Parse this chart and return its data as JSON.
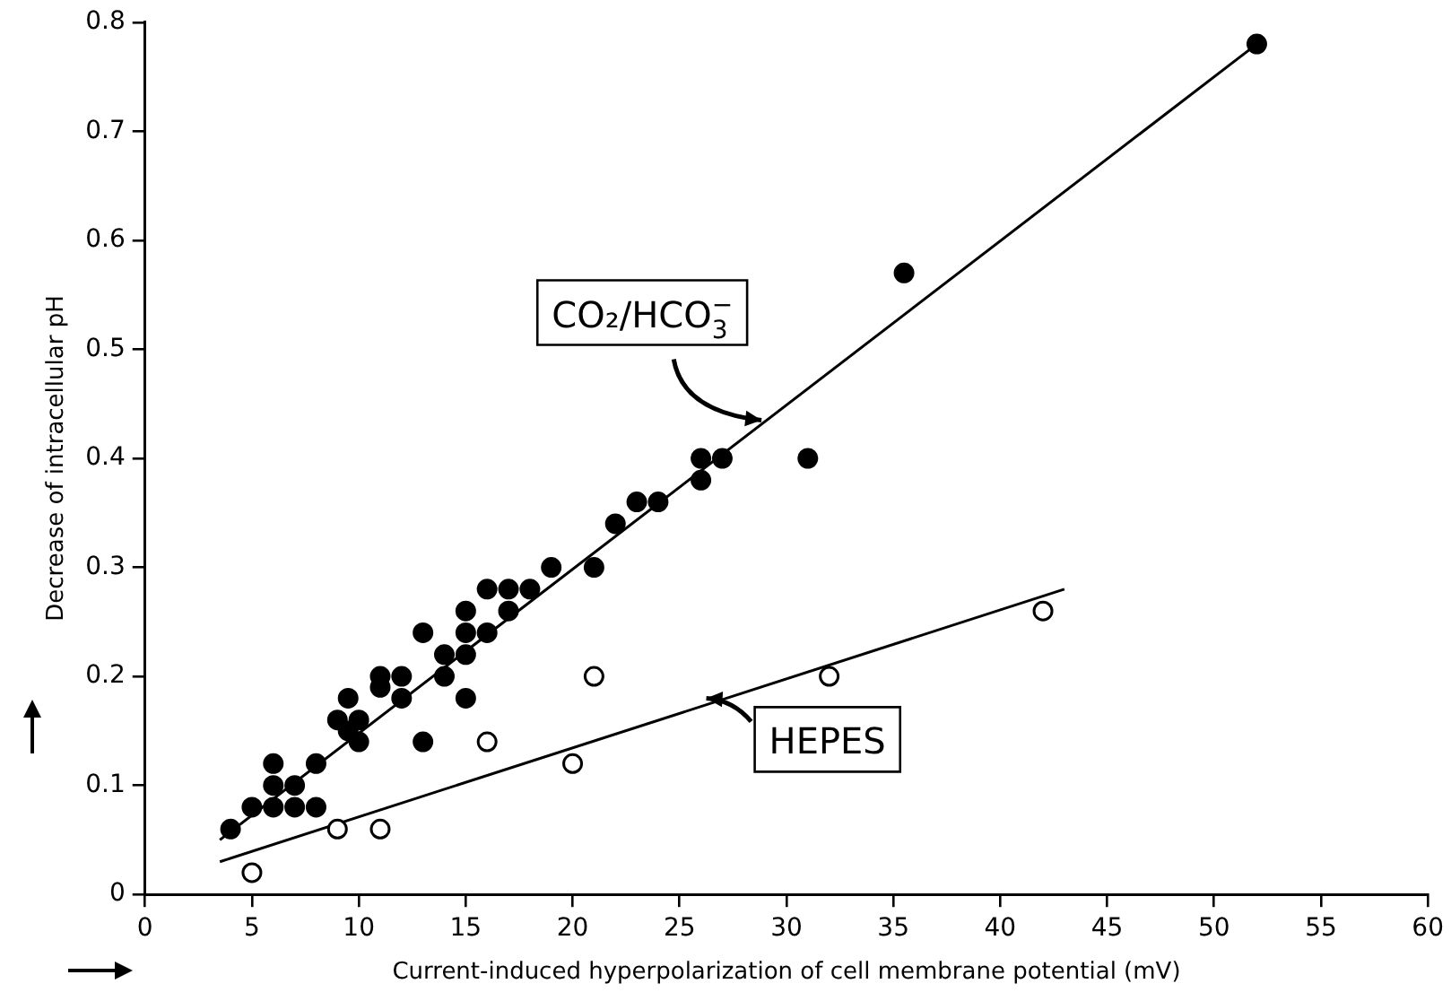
{
  "chart_data": {
    "type": "scatter",
    "xlabel": "Current-induced hyperpolarization of cell membrane potential (mV)",
    "ylabel": "Decrease of intracellular pH",
    "xlim": [
      0,
      60
    ],
    "xticks": [
      0,
      5,
      10,
      15,
      20,
      25,
      30,
      35,
      40,
      45,
      50,
      55,
      60
    ],
    "ylim": [
      0,
      0.8
    ],
    "yticks": [
      0,
      0.1,
      0.2,
      0.3,
      0.4,
      0.5,
      0.6,
      0.7,
      0.8
    ],
    "grid": false,
    "legend": false,
    "marker": "circle",
    "series": [
      {
        "color": "#000000",
        "x": [
          4,
          5,
          6,
          6,
          6,
          7,
          7,
          8,
          8,
          9,
          9.5,
          9.5,
          10,
          10,
          11,
          11,
          12,
          12,
          13,
          13,
          14,
          14,
          15,
          15,
          15,
          15,
          16,
          16,
          17,
          17,
          18,
          19,
          21,
          22,
          23,
          24,
          26,
          26,
          27,
          31,
          35.5,
          52
        ],
        "values": [
          0.06,
          0.08,
          0.08,
          0.1,
          0.12,
          0.08,
          0.1,
          0.08,
          0.12,
          0.16,
          0.18,
          0.15,
          0.14,
          0.16,
          0.19,
          0.2,
          0.2,
          0.18,
          0.14,
          0.24,
          0.2,
          0.22,
          0.18,
          0.22,
          0.24,
          0.26,
          0.28,
          0.24,
          0.26,
          0.28,
          0.28,
          0.3,
          0.3,
          0.34,
          0.36,
          0.36,
          0.38,
          0.4,
          0.4,
          0.4,
          0.57,
          0.78
        ]
      },
      {
        "color": "#ffffff",
        "x": [
          5,
          9,
          11,
          16,
          20,
          21,
          32,
          42
        ],
        "values": [
          0.02,
          0.06,
          0.06,
          0.14,
          0.12,
          0.2,
          0.2,
          0.26
        ]
      },
      {
        "type": "line",
        "color": "#000000",
        "marker": "none",
        "x": [
          3.5,
          52
        ],
        "values": [
          0.05,
          0.78
        ]
      },
      {
        "type": "line",
        "color": "#000000",
        "marker": "none",
        "x": [
          3.5,
          43
        ],
        "values": [
          0.03,
          0.28
        ]
      }
    ],
    "annotations": [
      {
        "text": "CO₂/HCO$_{3}$$^{−}$",
        "x": 29,
        "y": 0.43
      },
      {
        "text": "HEPES",
        "x": 26,
        "y": 0.18
      }
    ]
  }
}
